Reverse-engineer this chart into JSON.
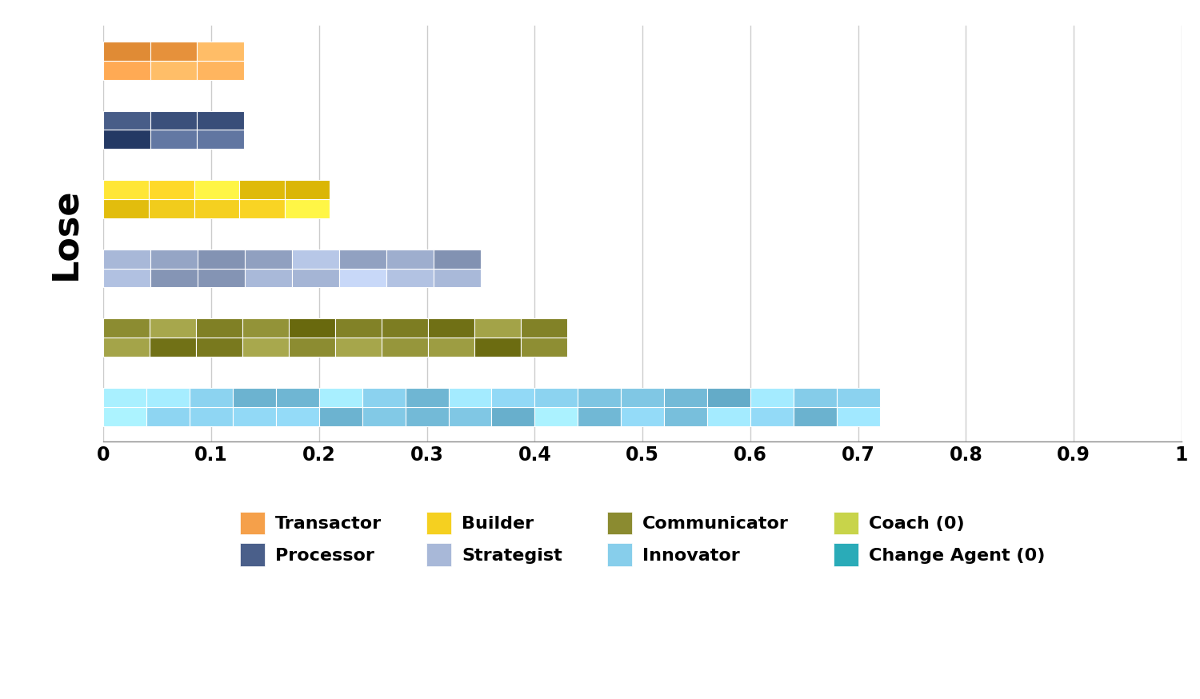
{
  "categories": [
    "Transactor",
    "Processor",
    "Builder",
    "Strategist",
    "Communicator",
    "Innovator"
  ],
  "values": [
    0.13,
    0.13,
    0.21,
    0.35,
    0.43,
    0.72
  ],
  "colors": [
    "#F5A04A",
    "#4A5F8A",
    "#F5D020",
    "#A8B8D8",
    "#8B8B30",
    "#87CEEB"
  ],
  "ylabel": "Lose",
  "xlim": [
    0,
    1
  ],
  "xticks": [
    0,
    0.1,
    0.2,
    0.3,
    0.4,
    0.5,
    0.6,
    0.7,
    0.8,
    0.9,
    1.0
  ],
  "xtick_labels": [
    "0",
    "0.1",
    "0.2",
    "0.3",
    "0.4",
    "0.5",
    "0.6",
    "0.7",
    "0.8",
    "0.9",
    "1"
  ],
  "background_color": "#ffffff",
  "legend_items": [
    {
      "label": "Transactor",
      "color": "#F5A04A"
    },
    {
      "label": "Processor",
      "color": "#4A5F8A"
    },
    {
      "label": "Builder",
      "color": "#F5D020"
    },
    {
      "label": "Strategist",
      "color": "#A8B8D8"
    },
    {
      "label": "Communicator",
      "color": "#8B8B30"
    },
    {
      "label": "Innovator",
      "color": "#87CEEB"
    },
    {
      "label": "Coach (0)",
      "color": "#C8D44A"
    },
    {
      "label": "Change Agent (0)",
      "color": "#2AABB8"
    }
  ],
  "grid_color": "#cccccc",
  "bar_height": 0.55,
  "ylabel_fontsize": 32,
  "ylabel_fontweight": "bold",
  "tick_fontsize": 17
}
